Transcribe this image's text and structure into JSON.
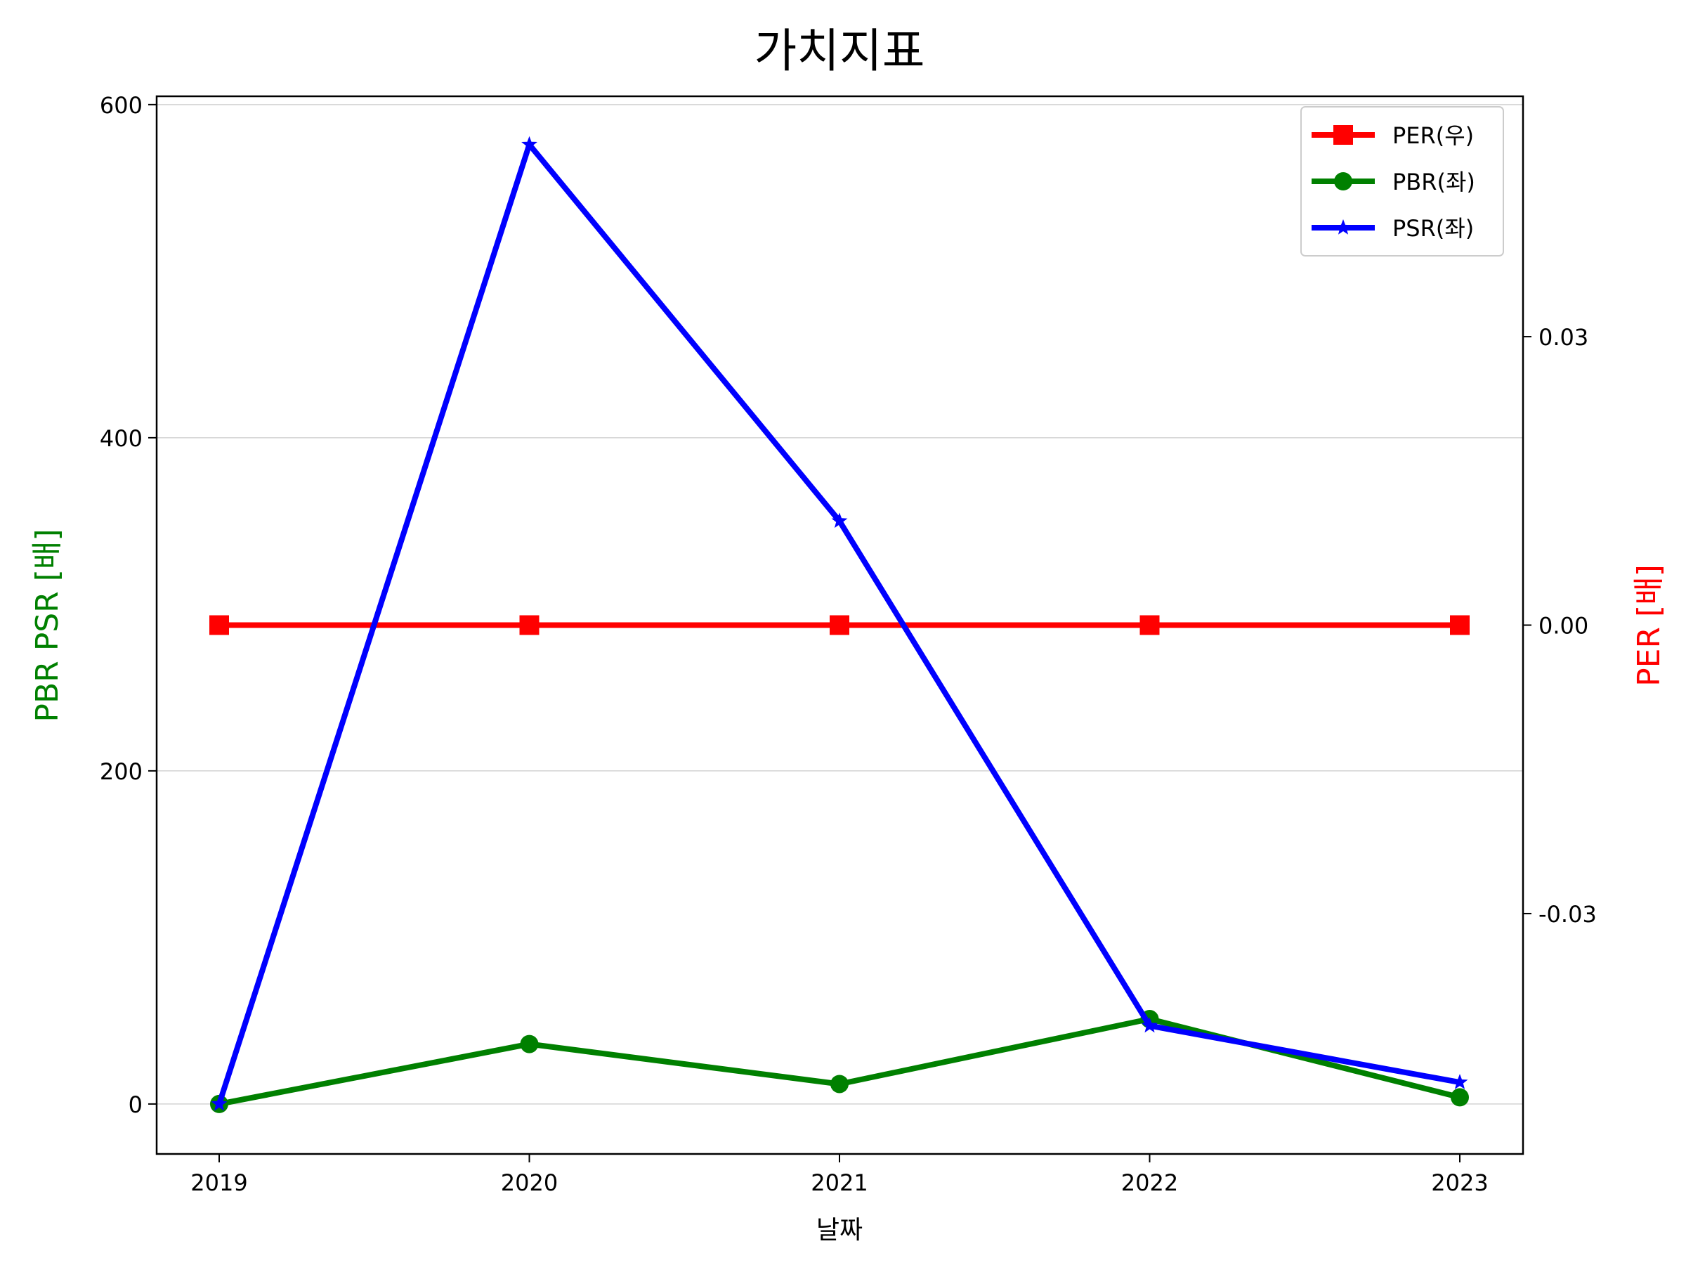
{
  "chart_data": {
    "type": "line",
    "title": "가치지표",
    "xlabel": "날짜",
    "ylabel_left": "PBR PSR [배]",
    "ylabel_right": "PER [배]",
    "categories": [
      "2019",
      "2020",
      "2021",
      "2022",
      "2023"
    ],
    "y_left": {
      "lim": [
        -30,
        605
      ],
      "ticks": [
        0,
        200,
        400,
        600
      ],
      "tick_labels": [
        "0",
        "200",
        "400",
        "600"
      ]
    },
    "y_right": {
      "lim": [
        -0.055,
        0.055
      ],
      "ticks": [
        -0.03,
        0.0,
        0.03
      ],
      "tick_labels": [
        "-0.03",
        "0.00",
        "0.03"
      ]
    },
    "grid": true,
    "legend_position": "top-right",
    "series": [
      {
        "name": "PER(우)",
        "axis": "right",
        "color": "#ff0000",
        "marker": "square",
        "values": [
          0,
          0,
          0,
          0,
          0
        ]
      },
      {
        "name": "PBR(좌)",
        "axis": "left",
        "color": "#008000",
        "marker": "circle",
        "values": [
          0,
          36,
          12,
          51,
          4
        ]
      },
      {
        "name": "PSR(좌)",
        "axis": "left",
        "color": "#0000ff",
        "marker": "star",
        "values": [
          0,
          576,
          350,
          47,
          13
        ]
      }
    ]
  },
  "colors": {
    "left_axis_label": "#008000",
    "right_axis_label": "#ff0000",
    "grid": "#d3d3d3"
  }
}
